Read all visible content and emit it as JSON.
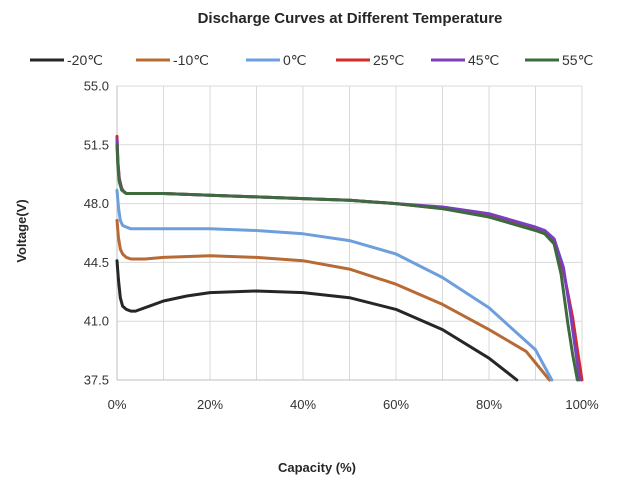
{
  "chart_data": {
    "type": "line",
    "title": "Discharge Curves at Different Temperature",
    "xlabel": "Capacity (%)",
    "ylabel": "Voltage(V)",
    "xlim": [
      0,
      100
    ],
    "ylim": [
      37.5,
      55.0
    ],
    "x_ticks": [
      "0%",
      "20%",
      "40%",
      "60%",
      "80%",
      "100%"
    ],
    "y_ticks": [
      "37.5",
      "41.0",
      "44.5",
      "48.0",
      "51.5",
      "55.0"
    ],
    "grid": true,
    "legend_position": "top",
    "series": [
      {
        "name": "-20℃",
        "color": "#262626",
        "x": [
          0,
          0.3,
          0.7,
          1.2,
          2,
          3,
          4,
          5,
          7,
          10,
          15,
          20,
          30,
          40,
          50,
          60,
          70,
          80,
          86
        ],
        "y": [
          44.6,
          43.5,
          42.4,
          41.9,
          41.7,
          41.6,
          41.6,
          41.7,
          41.9,
          42.2,
          42.5,
          42.7,
          42.8,
          42.7,
          42.4,
          41.7,
          40.5,
          38.8,
          37.5
        ]
      },
      {
        "name": "-10℃",
        "color": "#b86a34",
        "x": [
          0,
          0.3,
          0.7,
          1.2,
          2,
          3,
          4,
          6,
          10,
          20,
          30,
          40,
          50,
          60,
          70,
          80,
          88,
          93
        ],
        "y": [
          47.0,
          46.0,
          45.3,
          45.0,
          44.8,
          44.7,
          44.7,
          44.7,
          44.8,
          44.9,
          44.8,
          44.6,
          44.1,
          43.2,
          42.0,
          40.5,
          39.2,
          37.5
        ]
      },
      {
        "name": "0℃",
        "color": "#6d9fdc",
        "x": [
          0,
          0.3,
          0.7,
          1.2,
          2,
          3,
          5,
          10,
          20,
          30,
          40,
          50,
          60,
          70,
          80,
          90,
          93.5
        ],
        "y": [
          48.8,
          47.8,
          47.0,
          46.7,
          46.6,
          46.5,
          46.5,
          46.5,
          46.5,
          46.4,
          46.2,
          45.8,
          45.0,
          43.6,
          41.8,
          39.3,
          37.5
        ]
      },
      {
        "name": "25℃",
        "color": "#d42a2a",
        "x": [
          0,
          0.2,
          0.5,
          1,
          1.5,
          2,
          3,
          5,
          10,
          20,
          30,
          40,
          50,
          60,
          70,
          80,
          85,
          90,
          92,
          94,
          96,
          98,
          99,
          100
        ],
        "y": [
          52.0,
          50.5,
          49.5,
          48.9,
          48.7,
          48.6,
          48.6,
          48.6,
          48.6,
          48.5,
          48.4,
          48.3,
          48.2,
          48.0,
          47.7,
          47.3,
          46.9,
          46.5,
          46.3,
          45.8,
          44.0,
          41.2,
          39.3,
          37.5
        ]
      },
      {
        "name": "45℃",
        "color": "#7b3fbe",
        "x": [
          0,
          0.2,
          0.5,
          1,
          1.5,
          2,
          3,
          5,
          10,
          20,
          30,
          40,
          50,
          60,
          70,
          80,
          85,
          90,
          92,
          94,
          96,
          97.5,
          98.5,
          99.5
        ],
        "y": [
          51.8,
          50.4,
          49.4,
          48.9,
          48.7,
          48.6,
          48.6,
          48.6,
          48.6,
          48.5,
          48.4,
          48.3,
          48.2,
          48.0,
          47.8,
          47.4,
          47.0,
          46.6,
          46.4,
          45.9,
          44.2,
          41.5,
          39.5,
          37.5
        ]
      },
      {
        "name": "55℃",
        "color": "#3e6b3e",
        "x": [
          0,
          0.2,
          0.5,
          1,
          1.5,
          2,
          3,
          5,
          10,
          20,
          30,
          40,
          50,
          60,
          70,
          80,
          85,
          90,
          92,
          94,
          95.5,
          97,
          98,
          99
        ],
        "y": [
          51.5,
          50.2,
          49.3,
          48.8,
          48.7,
          48.6,
          48.6,
          48.6,
          48.6,
          48.5,
          48.4,
          48.3,
          48.2,
          48.0,
          47.7,
          47.2,
          46.8,
          46.4,
          46.2,
          45.6,
          43.8,
          40.8,
          39.0,
          37.5
        ]
      }
    ]
  }
}
